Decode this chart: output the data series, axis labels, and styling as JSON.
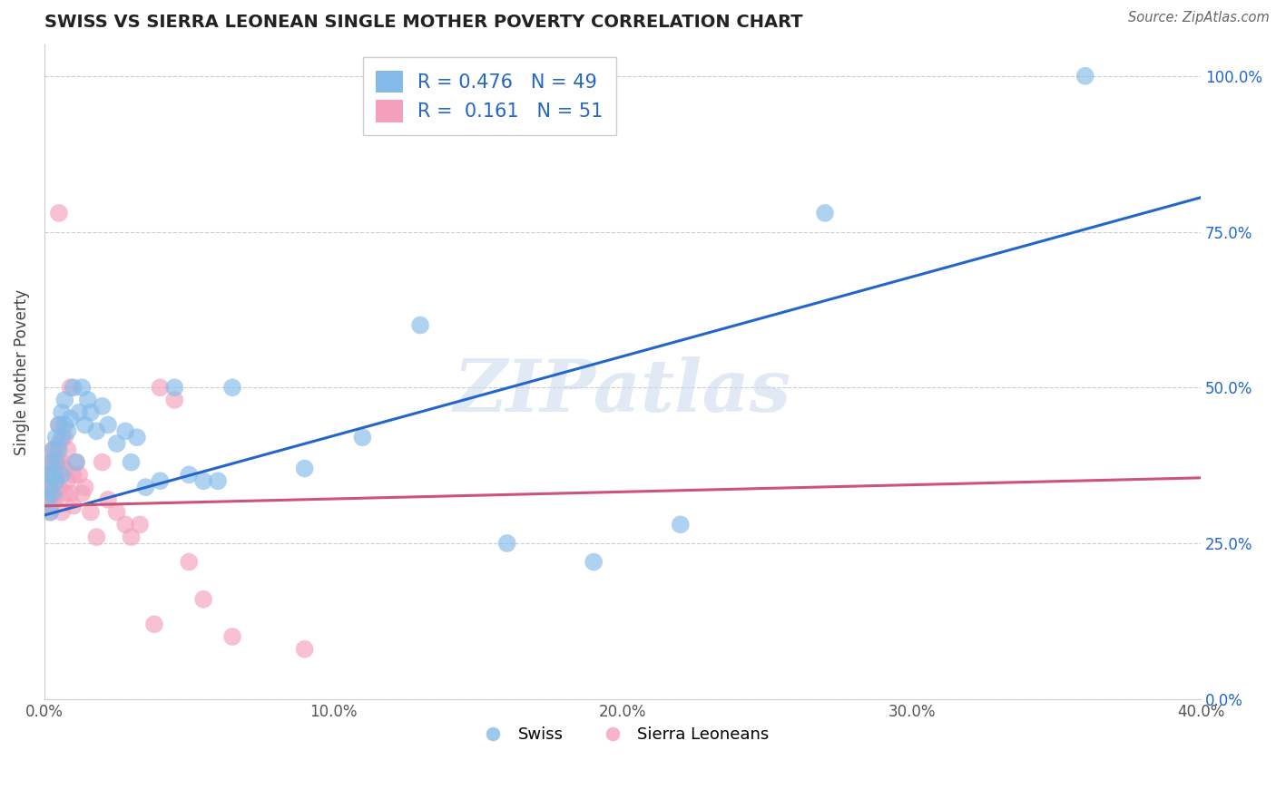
{
  "title": "SWISS VS SIERRA LEONEAN SINGLE MOTHER POVERTY CORRELATION CHART",
  "source": "Source: ZipAtlas.com",
  "ylabel": "Single Mother Poverty",
  "xlabel_vals": [
    0.0,
    0.1,
    0.2,
    0.3,
    0.4
  ],
  "ylabel_vals": [
    0.0,
    0.25,
    0.5,
    0.75,
    1.0
  ],
  "swiss_R": 0.476,
  "swiss_N": 49,
  "sierra_R": 0.161,
  "sierra_N": 51,
  "swiss_color": "#85BBE8",
  "sierra_color": "#F4A0BC",
  "swiss_line_color": "#2266CC",
  "sierra_line_color": "#CC5577",
  "watermark_text": "ZIPatlas",
  "swiss_x": [
    0.001,
    0.001,
    0.002,
    0.002,
    0.002,
    0.003,
    0.003,
    0.003,
    0.004,
    0.004,
    0.004,
    0.005,
    0.005,
    0.006,
    0.006,
    0.006,
    0.007,
    0.007,
    0.008,
    0.009,
    0.01,
    0.011,
    0.012,
    0.013,
    0.014,
    0.015,
    0.016,
    0.018,
    0.02,
    0.022,
    0.025,
    0.028,
    0.03,
    0.032,
    0.035,
    0.04,
    0.045,
    0.05,
    0.055,
    0.06,
    0.065,
    0.09,
    0.11,
    0.13,
    0.16,
    0.19,
    0.22,
    0.27,
    0.36
  ],
  "swiss_y": [
    0.32,
    0.36,
    0.3,
    0.34,
    0.38,
    0.33,
    0.36,
    0.4,
    0.35,
    0.42,
    0.38,
    0.44,
    0.4,
    0.36,
    0.42,
    0.46,
    0.48,
    0.44,
    0.43,
    0.45,
    0.5,
    0.38,
    0.46,
    0.5,
    0.44,
    0.48,
    0.46,
    0.43,
    0.47,
    0.44,
    0.41,
    0.43,
    0.38,
    0.42,
    0.34,
    0.35,
    0.5,
    0.36,
    0.35,
    0.35,
    0.5,
    0.37,
    0.42,
    0.6,
    0.25,
    0.22,
    0.28,
    0.78,
    1.0
  ],
  "sierra_x": [
    0.001,
    0.001,
    0.001,
    0.002,
    0.002,
    0.002,
    0.002,
    0.002,
    0.003,
    0.003,
    0.003,
    0.003,
    0.004,
    0.004,
    0.004,
    0.004,
    0.005,
    0.005,
    0.005,
    0.005,
    0.005,
    0.006,
    0.006,
    0.007,
    0.007,
    0.007,
    0.008,
    0.008,
    0.009,
    0.009,
    0.01,
    0.01,
    0.011,
    0.012,
    0.013,
    0.014,
    0.016,
    0.018,
    0.02,
    0.022,
    0.025,
    0.028,
    0.03,
    0.033,
    0.038,
    0.04,
    0.045,
    0.05,
    0.055,
    0.065,
    0.09
  ],
  "sierra_y": [
    0.31,
    0.33,
    0.36,
    0.31,
    0.35,
    0.38,
    0.33,
    0.3,
    0.32,
    0.36,
    0.38,
    0.4,
    0.35,
    0.32,
    0.36,
    0.4,
    0.34,
    0.38,
    0.41,
    0.44,
    0.78,
    0.3,
    0.38,
    0.33,
    0.37,
    0.42,
    0.35,
    0.4,
    0.33,
    0.5,
    0.31,
    0.36,
    0.38,
    0.36,
    0.33,
    0.34,
    0.3,
    0.26,
    0.38,
    0.32,
    0.3,
    0.28,
    0.26,
    0.28,
    0.12,
    0.5,
    0.48,
    0.22,
    0.16,
    0.1,
    0.08
  ],
  "xmin": 0.0,
  "xmax": 0.4,
  "ymin": 0.0,
  "ymax": 1.05,
  "swiss_trend_x": [
    0.0,
    0.4
  ],
  "swiss_trend_y": [
    0.295,
    0.805
  ],
  "sierra_trend_x": [
    0.0,
    0.4
  ],
  "sierra_trend_y": [
    0.31,
    0.355
  ]
}
